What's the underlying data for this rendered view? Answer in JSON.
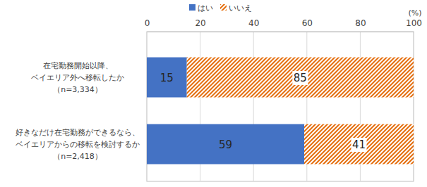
{
  "chart_data": {
    "type": "bar",
    "orientation": "horizontal",
    "stacked": true,
    "data_labels": true,
    "grid": true,
    "legend": "top",
    "x_label": "(%)",
    "categories": [
      [
        "在宅勤務開始以降、",
        "ベイエリア外へ移転したか",
        "（n=3,334）"
      ],
      [
        "好きなだけ在宅勤務ができるなら、",
        "ベイエリアからの移転を検討するか",
        "（n=2,418）"
      ]
    ],
    "series": [
      {
        "name": "はい",
        "color": "#4472c4",
        "values": [
          15,
          59
        ]
      },
      {
        "name": "いいえ",
        "color": "#e46c0a",
        "values": [
          85,
          41
        ]
      }
    ],
    "xlim": [
      0,
      100
    ],
    "xticks": [
      0,
      20,
      40,
      60,
      80,
      100
    ]
  }
}
